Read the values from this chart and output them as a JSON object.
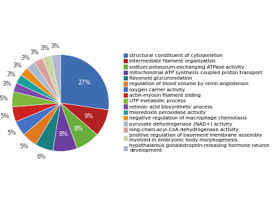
{
  "labels": [
    "structural constituent of cytoskeleton",
    "intermediate filament organization",
    "sodium:potassium-exchanging ATPase activity",
    "mitochondrial ATP synthesis coupled proton transport",
    "flavonoid glucuronidation",
    "regulation of blood volume by renin-angiotensin",
    "oxygen carrier activity",
    "actin-myosin filament sliding",
    "UTP metabolic process",
    "retinoic acid biosynthetic process",
    "thioredoxin peroxidase activity",
    "negative regulation of macrophage chemotaxis",
    "pyruvate dehydrogenase (NAD+) activity",
    "long-chain-acyl-CoA dehydrogenase activity",
    "positive regulation of basement membrane assembly\ninvolved in embryonic body morphogenesis",
    "hypothalamus gonadotrophin-releasing hormone neuron\ndevelopment"
  ],
  "sizes": [
    27,
    9,
    8,
    8,
    6,
    5,
    5,
    5,
    5,
    3,
    3,
    3,
    3,
    3,
    3,
    3
  ],
  "colors": [
    "#3F6CB0",
    "#B22222",
    "#6AAF3D",
    "#6B3FA0",
    "#1A7F7F",
    "#E07820",
    "#4472C4",
    "#CC2222",
    "#7DB83A",
    "#7B4FA8",
    "#19A0A0",
    "#E88C20",
    "#AABBCC",
    "#D9A0A0",
    "#C8D8A0",
    "#B0B8D0"
  ],
  "pct_fontsize": 6,
  "legend_fontsize": 5.2,
  "figsize": [
    4.0,
    3.0
  ],
  "dpi": 100,
  "startangle": 90,
  "pct_distance": 0.78
}
